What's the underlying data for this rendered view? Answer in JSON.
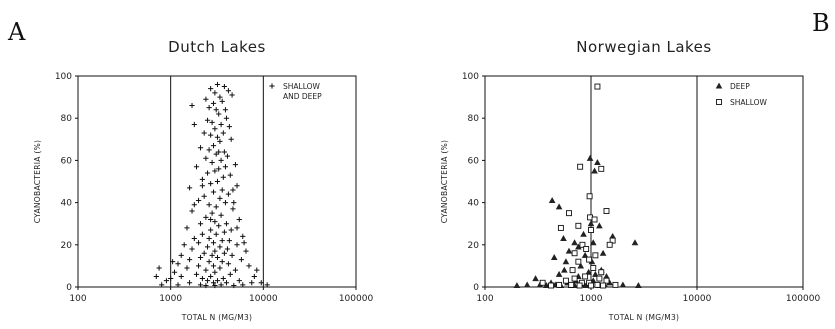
{
  "chart_data": [
    {
      "type": "scatter",
      "panel_label": "A",
      "title": "Dutch Lakes",
      "xlabel": "TOTAL N (MG/M3)",
      "ylabel": "CYANOBACTERIA (%)",
      "xscale": "log",
      "xlim": [
        100,
        100000
      ],
      "ylim": [
        0,
        100
      ],
      "xticks": [
        "100",
        "1000",
        "10000",
        "100000"
      ],
      "yticks": [
        "0",
        "20",
        "40",
        "60",
        "80",
        "100"
      ],
      "vlines": [
        1000,
        10000
      ],
      "grid": false,
      "legend_position": "top-right",
      "series": [
        {
          "name": "SHALLOW AND DEEP",
          "legend_lines": [
            "SHALLOW",
            "AND DEEP"
          ],
          "marker": "plus",
          "points": [
            [
              3200,
              96
            ],
            [
              3800,
              95
            ],
            [
              2700,
              94
            ],
            [
              4200,
              93
            ],
            [
              3000,
              92
            ],
            [
              2400,
              89
            ],
            [
              3400,
              90
            ],
            [
              4600,
              91
            ],
            [
              3600,
              88
            ],
            [
              2900,
              87
            ],
            [
              1700,
              86
            ],
            [
              2600,
              85
            ],
            [
              3100,
              84
            ],
            [
              3900,
              84
            ],
            [
              3300,
              82
            ],
            [
              4000,
              80
            ],
            [
              2500,
              79
            ],
            [
              2800,
              78
            ],
            [
              3500,
              77
            ],
            [
              1800,
              77
            ],
            [
              4300,
              76
            ],
            [
              3000,
              75
            ],
            [
              2300,
              73
            ],
            [
              3700,
              73
            ],
            [
              2700,
              72
            ],
            [
              3200,
              71
            ],
            [
              4500,
              70
            ],
            [
              3400,
              69
            ],
            [
              2900,
              67
            ],
            [
              2100,
              66
            ],
            [
              2600,
              65
            ],
            [
              3800,
              64
            ],
            [
              3100,
              63
            ],
            [
              4100,
              62
            ],
            [
              2400,
              61
            ],
            [
              3500,
              60
            ],
            [
              2800,
              59
            ],
            [
              5000,
              58
            ],
            [
              1900,
              57
            ],
            [
              3300,
              56
            ],
            [
              3000,
              55
            ],
            [
              2500,
              54
            ],
            [
              4400,
              53
            ],
            [
              3700,
              52
            ],
            [
              2200,
              51
            ],
            [
              3200,
              50
            ],
            [
              2700,
              49
            ],
            [
              5200,
              48
            ],
            [
              1600,
              47
            ],
            [
              3600,
              46
            ],
            [
              2900,
              45
            ],
            [
              4200,
              44
            ],
            [
              2300,
              43
            ],
            [
              3400,
              42
            ],
            [
              2000,
              41
            ],
            [
              3900,
              40
            ],
            [
              2600,
              39
            ],
            [
              3100,
              38
            ],
            [
              4700,
              37
            ],
            [
              1700,
              36
            ],
            [
              2800,
              35
            ],
            [
              3500,
              34
            ],
            [
              2400,
              33
            ],
            [
              5500,
              32
            ],
            [
              3000,
              31
            ],
            [
              2100,
              30
            ],
            [
              4000,
              30
            ],
            [
              3300,
              29
            ],
            [
              1500,
              28
            ],
            [
              2700,
              27
            ],
            [
              4500,
              27
            ],
            [
              3800,
              26
            ],
            [
              2200,
              25
            ],
            [
              3100,
              25
            ],
            [
              6000,
              24
            ],
            [
              1800,
              23
            ],
            [
              2600,
              23
            ],
            [
              3600,
              22
            ],
            [
              4300,
              22
            ],
            [
              2000,
              21
            ],
            [
              2900,
              21
            ],
            [
              5200,
              20
            ],
            [
              1400,
              20
            ],
            [
              3400,
              19
            ],
            [
              2500,
              19
            ],
            [
              4100,
              18
            ],
            [
              1700,
              18
            ],
            [
              3000,
              17
            ],
            [
              6500,
              17
            ],
            [
              2300,
              16
            ],
            [
              3800,
              16
            ],
            [
              1300,
              15
            ],
            [
              2800,
              15
            ],
            [
              4600,
              15
            ],
            [
              2100,
              14
            ],
            [
              3200,
              14
            ],
            [
              1600,
              13
            ],
            [
              5800,
              13
            ],
            [
              2600,
              12
            ],
            [
              3600,
              12
            ],
            [
              1200,
              11
            ],
            [
              4200,
              11
            ],
            [
              2000,
              10
            ],
            [
              2900,
              10
            ],
            [
              7000,
              10
            ],
            [
              1500,
              9
            ],
            [
              3400,
              9
            ],
            [
              2400,
              8
            ],
            [
              5000,
              8
            ],
            [
              1100,
              7
            ],
            [
              3000,
              7
            ],
            [
              1900,
              6
            ],
            [
              4400,
              6
            ],
            [
              2700,
              5
            ],
            [
              8000,
              5
            ],
            [
              1300,
              5
            ],
            [
              3700,
              4
            ],
            [
              2200,
              4
            ],
            [
              1000,
              4
            ],
            [
              5500,
              3
            ],
            [
              2500,
              3
            ],
            [
              3200,
              3
            ],
            [
              1600,
              2
            ],
            [
              4000,
              2
            ],
            [
              7500,
              2
            ],
            [
              2900,
              2
            ],
            [
              1200,
              1
            ],
            [
              3500,
              1
            ],
            [
              2100,
              1
            ],
            [
              6000,
              1
            ],
            [
              3000,
              0
            ],
            [
              4800,
              0
            ],
            [
              2400,
              0
            ],
            [
              800,
              1
            ],
            [
              700,
              5
            ],
            [
              750,
              9
            ],
            [
              900,
              3
            ],
            [
              1050,
              12
            ],
            [
              8500,
              8
            ],
            [
              9500,
              2
            ],
            [
              11000,
              1
            ],
            [
              4800,
              40
            ],
            [
              5200,
              28
            ],
            [
              6200,
              21
            ],
            [
              3300,
              64
            ],
            [
              3900,
              57
            ],
            [
              2200,
              48
            ],
            [
              1800,
              39
            ],
            [
              2700,
              32
            ],
            [
              4700,
              46
            ]
          ]
        }
      ]
    },
    {
      "type": "scatter",
      "panel_label": "B",
      "title": "Norwegian Lakes",
      "xlabel": "TOTAL N (MG/M3)",
      "ylabel": "CYANOBACTERIA (%)",
      "xscale": "log",
      "xlim": [
        100,
        100000
      ],
      "ylim": [
        0,
        100
      ],
      "xticks": [
        "100",
        "1000",
        "10000",
        "100000"
      ],
      "yticks": [
        "0",
        "20",
        "40",
        "60",
        "80",
        "100"
      ],
      "vlines": [
        1000,
        10000
      ],
      "grid": false,
      "legend_position": "top-right",
      "series": [
        {
          "name": "DEEP",
          "marker": "triangle",
          "points": [
            [
              980,
              61
            ],
            [
              1150,
              59
            ],
            [
              1080,
              55
            ],
            [
              430,
              41
            ],
            [
              500,
              38
            ],
            [
              1000,
              30
            ],
            [
              1200,
              29
            ],
            [
              850,
              25
            ],
            [
              550,
              23
            ],
            [
              1050,
              21
            ],
            [
              2600,
              21
            ],
            [
              700,
              21
            ],
            [
              760,
              19
            ],
            [
              620,
              17
            ],
            [
              1300,
              16
            ],
            [
              880,
              15
            ],
            [
              1020,
              12
            ],
            [
              580,
              12
            ],
            [
              800,
              10
            ],
            [
              1250,
              8
            ],
            [
              1100,
              6
            ],
            [
              950,
              7
            ],
            [
              500,
              6
            ],
            [
              1400,
              5
            ],
            [
              300,
              4
            ],
            [
              720,
              3
            ],
            [
              420,
              2
            ],
            [
              600,
              2
            ],
            [
              800,
              2
            ],
            [
              1000,
              1
            ],
            [
              1350,
              1
            ],
            [
              250,
              1
            ],
            [
              380,
              0
            ],
            [
              520,
              0
            ],
            [
              900,
              0
            ],
            [
              200,
              0
            ],
            [
              330,
              1
            ],
            [
              460,
              1
            ],
            [
              700,
              0
            ],
            [
              1200,
              0
            ],
            [
              1500,
              2
            ],
            [
              2000,
              1
            ],
            [
              2800,
              0
            ],
            [
              650,
              0
            ],
            [
              860,
              1
            ],
            [
              1050,
              3
            ],
            [
              760,
              5
            ],
            [
              560,
              8
            ],
            [
              450,
              14
            ],
            [
              1600,
              24
            ]
          ]
        },
        {
          "name": "SHALLOW",
          "marker": "square",
          "points": [
            [
              1150,
              95
            ],
            [
              790,
              57
            ],
            [
              1250,
              56
            ],
            [
              970,
              43
            ],
            [
              1400,
              36
            ],
            [
              620,
              35
            ],
            [
              520,
              28
            ],
            [
              980,
              33
            ],
            [
              1080,
              32
            ],
            [
              760,
              29
            ],
            [
              1000,
              27
            ],
            [
              1600,
              22
            ],
            [
              1500,
              20
            ],
            [
              830,
              20
            ],
            [
              1100,
              15
            ],
            [
              960,
              13
            ],
            [
              760,
              12
            ],
            [
              670,
              8
            ],
            [
              1250,
              7
            ],
            [
              1050,
              9
            ],
            [
              880,
              5
            ],
            [
              700,
              4
            ],
            [
              580,
              3
            ],
            [
              1400,
              3
            ],
            [
              960,
              2
            ],
            [
              820,
              2
            ],
            [
              650,
              1
            ],
            [
              500,
              1
            ],
            [
              1150,
              1
            ],
            [
              1300,
              0
            ],
            [
              420,
              0
            ],
            [
              780,
              0
            ],
            [
              1000,
              0
            ],
            [
              1700,
              1
            ],
            [
              350,
              2
            ],
            [
              1200,
              4
            ],
            [
              900,
              18
            ],
            [
              700,
              16
            ]
          ]
        }
      ]
    }
  ]
}
